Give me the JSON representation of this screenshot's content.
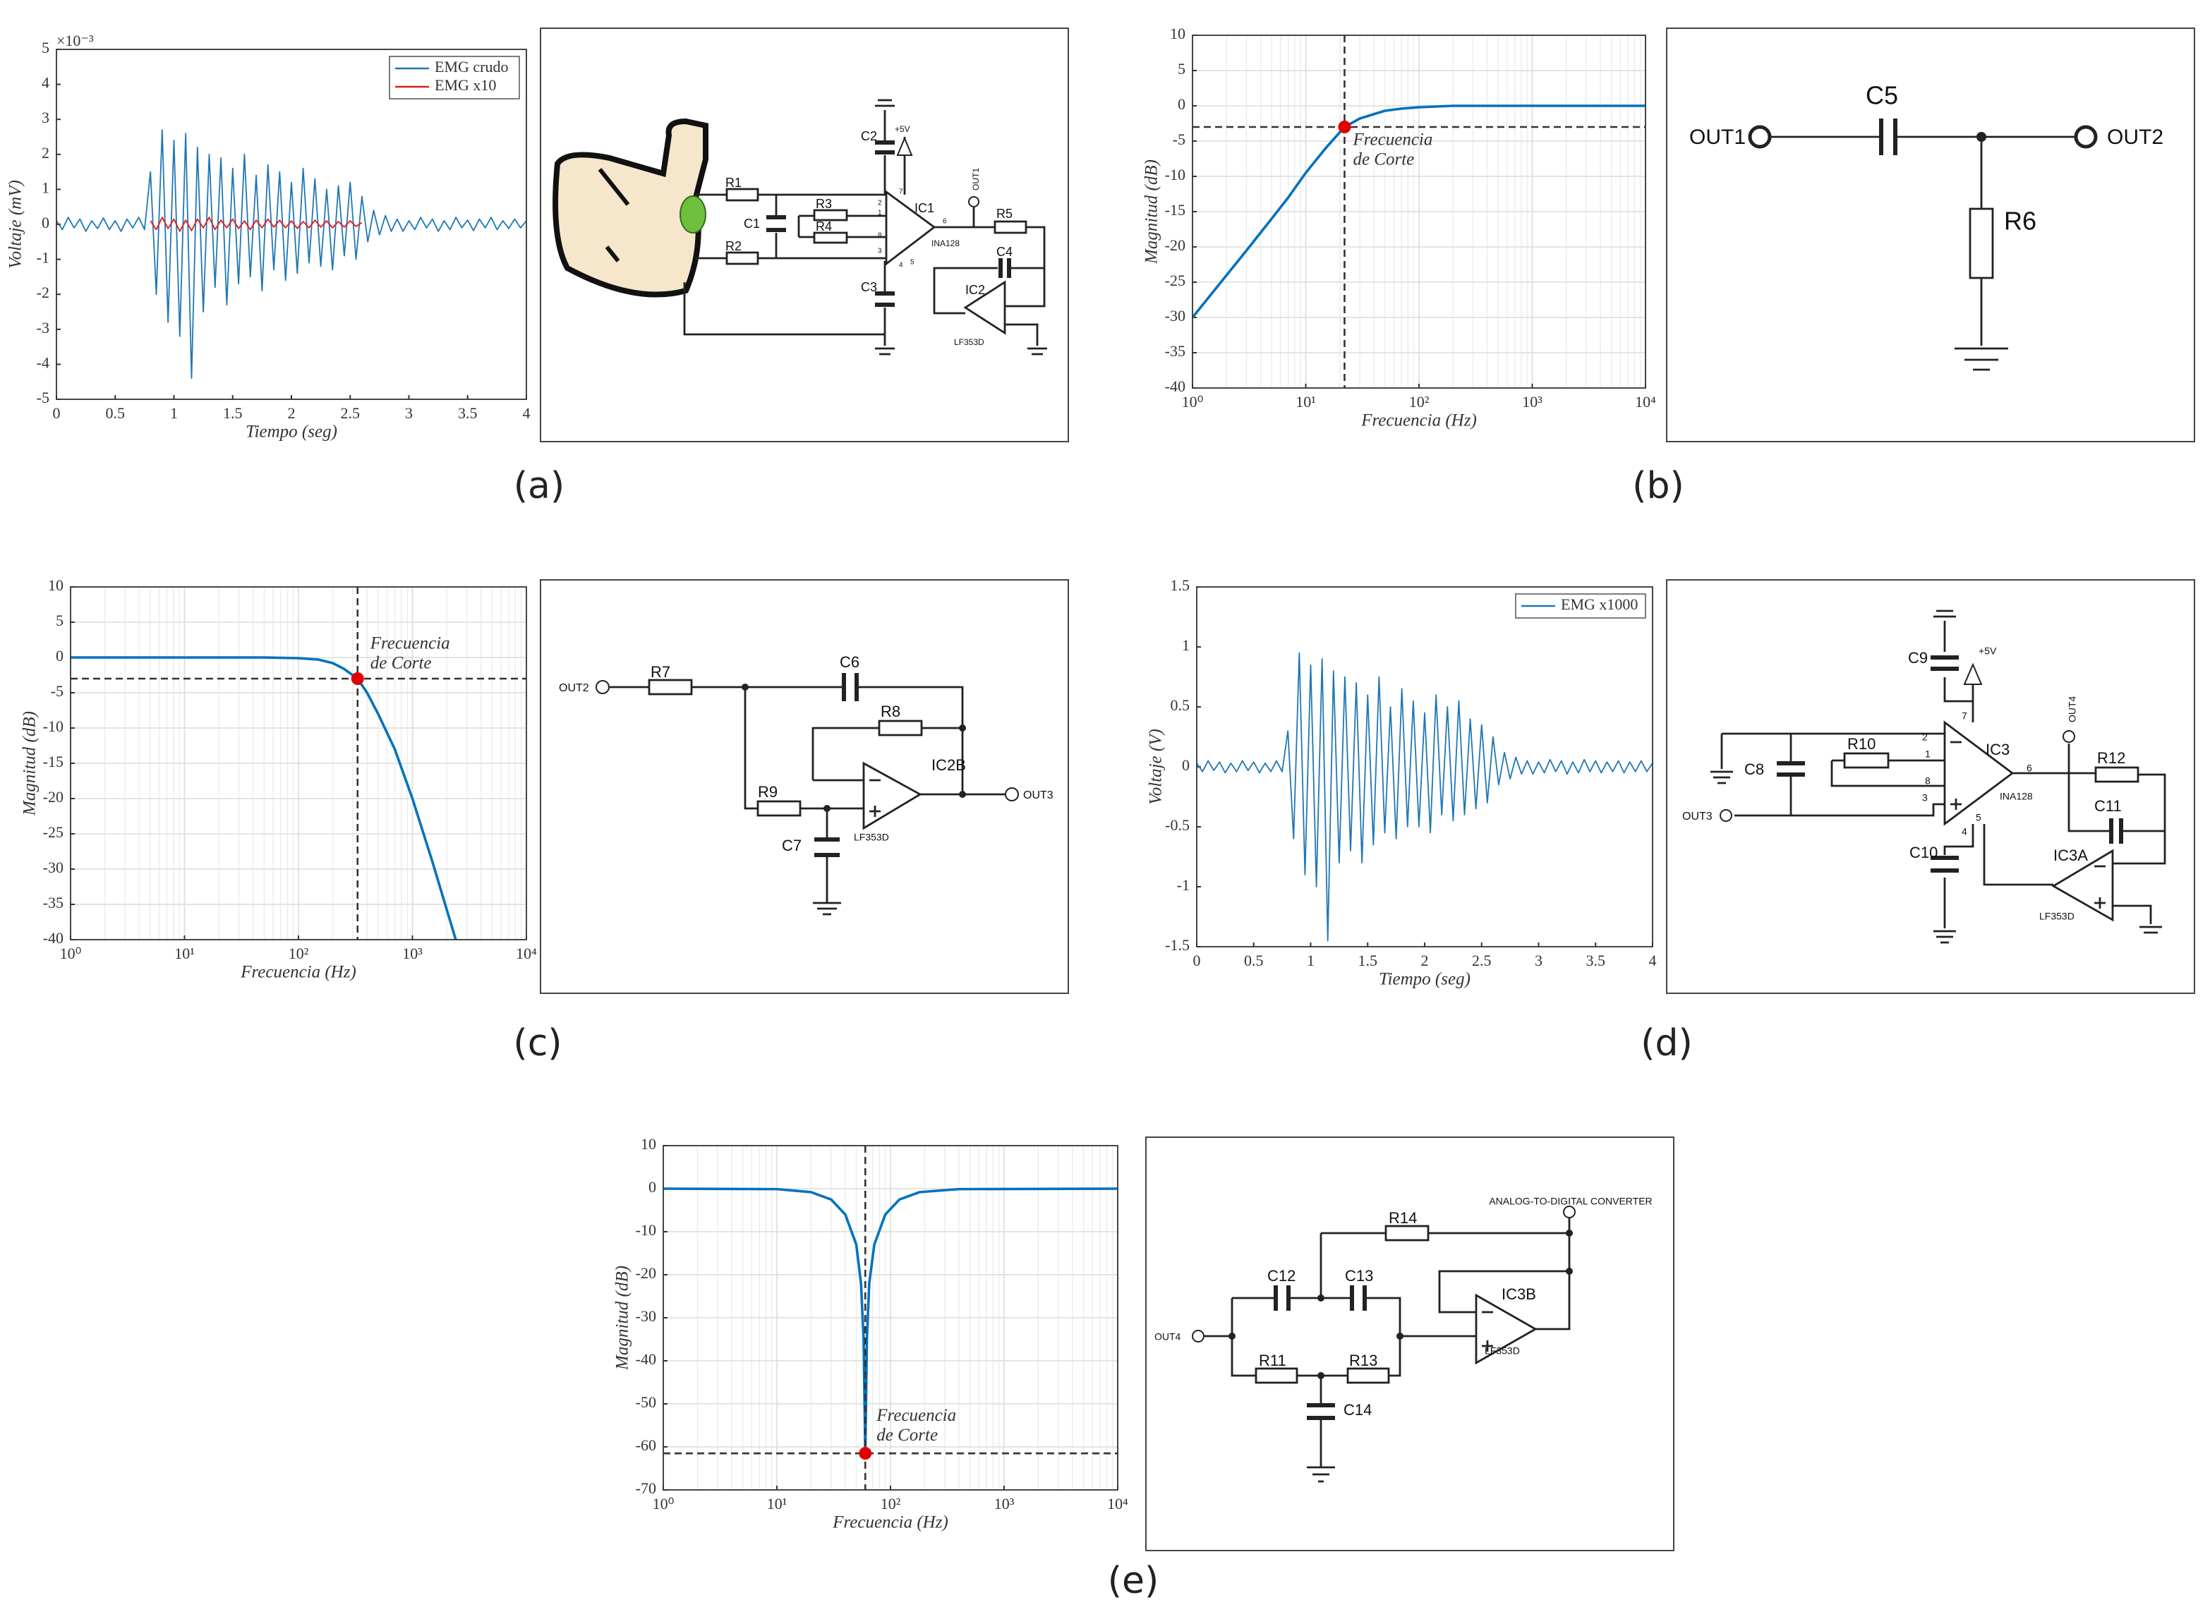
{
  "chart_data": [
    {
      "type": "line",
      "xlabel": "Tiempo (seg)",
      "ylabel": "Voltaje (mV)",
      "y_exponent_label": "×10⁻³",
      "xlim": [
        0,
        4
      ],
      "ylim": [
        -5,
        5
      ],
      "xticks": [
        0,
        0.5,
        1,
        1.5,
        2,
        2.5,
        3,
        3.5,
        4
      ],
      "yticks": [
        -5,
        -4,
        -3,
        -2,
        -1,
        0,
        1,
        2,
        3,
        4,
        5
      ],
      "grid": false,
      "legend": "upper right",
      "x": [
        0,
        0.05,
        0.1,
        0.15,
        0.2,
        0.25,
        0.3,
        0.35,
        0.4,
        0.45,
        0.5,
        0.55,
        0.6,
        0.65,
        0.7,
        0.75,
        0.8,
        0.85,
        0.9,
        0.95,
        1,
        1.05,
        1.1,
        1.15,
        1.2,
        1.25,
        1.3,
        1.35,
        1.4,
        1.45,
        1.5,
        1.55,
        1.6,
        1.65,
        1.7,
        1.75,
        1.8,
        1.85,
        1.9,
        1.95,
        2,
        2.05,
        2.1,
        2.15,
        2.2,
        2.25,
        2.3,
        2.35,
        2.4,
        2.45,
        2.5,
        2.55,
        2.6,
        2.65,
        2.7,
        2.75,
        2.8,
        2.85,
        2.9,
        2.95,
        3,
        3.05,
        3.1,
        3.15,
        3.2,
        3.25,
        3.3,
        3.35,
        3.4,
        3.45,
        3.5,
        3.55,
        3.6,
        3.65,
        3.7,
        3.75,
        3.8,
        3.85,
        3.9,
        3.95,
        4
      ],
      "series": [
        {
          "name": "EMG crudo",
          "color": "#1f77b4",
          "values": [
            0.1,
            -0.15,
            0.2,
            -0.1,
            0.15,
            -0.2,
            0.1,
            -0.12,
            0.18,
            -0.15,
            0.1,
            -0.2,
            0.15,
            -0.1,
            0.2,
            -0.15,
            1.5,
            -2.0,
            2.7,
            -2.8,
            2.4,
            -3.2,
            2.6,
            -4.4,
            2.2,
            -2.5,
            2.0,
            -1.8,
            1.9,
            -2.3,
            1.6,
            -1.7,
            2.0,
            -1.5,
            1.4,
            -1.9,
            1.7,
            -1.3,
            1.5,
            -1.6,
            1.2,
            -1.4,
            1.6,
            -1.1,
            1.3,
            -1.2,
            1.0,
            -1.3,
            1.1,
            -0.9,
            1.2,
            -1.0,
            0.8,
            -0.5,
            0.4,
            -0.3,
            0.25,
            -0.2,
            0.15,
            -0.2,
            0.1,
            -0.15,
            0.2,
            -0.1,
            0.15,
            -0.2,
            0.1,
            -0.15,
            0.2,
            -0.1,
            0.12,
            -0.18,
            0.15,
            -0.1,
            0.2,
            -0.15,
            0.1,
            -0.12,
            0.15,
            -0.1,
            0.1
          ]
        },
        {
          "name": "EMG x10",
          "color": "#e41a1c",
          "values": [
            null,
            null,
            null,
            null,
            null,
            null,
            null,
            null,
            null,
            null,
            null,
            null,
            null,
            null,
            null,
            null,
            0.1,
            -0.15,
            0.2,
            -0.12,
            0.15,
            -0.2,
            0.12,
            -0.18,
            0.15,
            -0.1,
            0.2,
            -0.15,
            0.12,
            -0.1,
            0.15,
            -0.12,
            0.1,
            -0.15,
            0.12,
            -0.1,
            0.15,
            -0.08,
            0.12,
            -0.1,
            0.1,
            -0.12,
            0.08,
            -0.1,
            0.12,
            -0.08,
            0.1,
            -0.1,
            0.08,
            -0.08,
            0.1,
            -0.06,
            0.05,
            null,
            null,
            null,
            null,
            null,
            null,
            null,
            null,
            null,
            null,
            null,
            null,
            null,
            null,
            null,
            null,
            null,
            null,
            null,
            null,
            null,
            null,
            null,
            null,
            null,
            null,
            null,
            null
          ]
        }
      ]
    },
    {
      "type": "line",
      "xscale": "log",
      "xlabel": "Frecuencia (Hz)",
      "ylabel": "Magnitud (dB)",
      "xlim": [
        1,
        10000
      ],
      "ylim": [
        -40,
        10
      ],
      "xticks": [
        {
          "value": 1,
          "label": "10⁰"
        },
        {
          "value": 10,
          "label": "10¹"
        },
        {
          "value": 100,
          "label": "10²"
        },
        {
          "value": 1000,
          "label": "10³"
        },
        {
          "value": 10000,
          "label": "10⁴"
        }
      ],
      "yticks": [
        -40,
        -35,
        -30,
        -25,
        -20,
        -15,
        -10,
        -5,
        0,
        5,
        10
      ],
      "grid": true,
      "minor_grid": true,
      "x": [
        1,
        2,
        3,
        5,
        7,
        10,
        15,
        22,
        30,
        50,
        70,
        100,
        200,
        500,
        1000,
        10000
      ],
      "series": [
        {
          "color": "#0072bd",
          "values": [
            -30,
            -24,
            -20.5,
            -16,
            -13,
            -9.5,
            -6,
            -3,
            -1.8,
            -0.7,
            -0.4,
            -0.2,
            0,
            0,
            0,
            0
          ]
        }
      ],
      "marker": {
        "x": 22,
        "y": -3,
        "color": "#e00000"
      },
      "annotation": [
        "Frecuencia",
        "de Corte"
      ]
    },
    {
      "type": "line",
      "xscale": "log",
      "xlabel": "Frecuencia (Hz)",
      "ylabel": "Magnitud (dB)",
      "xlim": [
        1,
        10000
      ],
      "ylim": [
        -40,
        10
      ],
      "xticks": [
        {
          "value": 1,
          "label": "10⁰"
        },
        {
          "value": 10,
          "label": "10¹"
        },
        {
          "value": 100,
          "label": "10²"
        },
        {
          "value": 1000,
          "label": "10³"
        },
        {
          "value": 10000,
          "label": "10⁴"
        }
      ],
      "yticks": [
        -40,
        -35,
        -30,
        -25,
        -20,
        -15,
        -10,
        -5,
        0,
        5,
        10
      ],
      "grid": true,
      "minor_grid": true,
      "x": [
        1,
        10,
        50,
        100,
        150,
        200,
        250,
        330,
        400,
        500,
        700,
        1000,
        1500,
        2400
      ],
      "series": [
        {
          "color": "#0072bd",
          "values": [
            0,
            0,
            0,
            -0.1,
            -0.3,
            -0.8,
            -1.6,
            -3,
            -5,
            -8,
            -13,
            -20,
            -29,
            -40
          ]
        }
      ],
      "marker": {
        "x": 330,
        "y": -3,
        "color": "#e00000"
      },
      "annotation": [
        "Frecuencia",
        "de Corte"
      ]
    },
    {
      "type": "line",
      "xlabel": "Tiempo (seg)",
      "ylabel": "Voltaje (V)",
      "xlim": [
        0,
        4
      ],
      "ylim": [
        -1.5,
        1.5
      ],
      "xticks": [
        0,
        0.5,
        1,
        1.5,
        2,
        2.5,
        3,
        3.5,
        4
      ],
      "yticks": [
        -1.5,
        -1,
        -0.5,
        0,
        0.5,
        1,
        1.5
      ],
      "grid": false,
      "legend": "upper right",
      "x": [
        0,
        0.05,
        0.1,
        0.15,
        0.2,
        0.25,
        0.3,
        0.35,
        0.4,
        0.45,
        0.5,
        0.55,
        0.6,
        0.65,
        0.7,
        0.75,
        0.8,
        0.85,
        0.9,
        0.95,
        1,
        1.05,
        1.1,
        1.15,
        1.2,
        1.25,
        1.3,
        1.35,
        1.4,
        1.45,
        1.5,
        1.55,
        1.6,
        1.65,
        1.7,
        1.75,
        1.8,
        1.85,
        1.9,
        1.95,
        2,
        2.05,
        2.1,
        2.15,
        2.2,
        2.25,
        2.3,
        2.35,
        2.4,
        2.45,
        2.5,
        2.55,
        2.6,
        2.65,
        2.7,
        2.75,
        2.8,
        2.85,
        2.9,
        2.95,
        3,
        3.05,
        3.1,
        3.15,
        3.2,
        3.25,
        3.3,
        3.35,
        3.4,
        3.45,
        3.5,
        3.55,
        3.6,
        3.65,
        3.7,
        3.75,
        3.8,
        3.85,
        3.9,
        3.95,
        4
      ],
      "series": [
        {
          "name": "EMG x1000",
          "color": "#1f77b4",
          "values": [
            0.03,
            -0.04,
            0.05,
            -0.03,
            0.04,
            -0.05,
            0.03,
            -0.04,
            0.05,
            -0.03,
            0.04,
            -0.05,
            0.03,
            -0.04,
            0.05,
            -0.04,
            0.3,
            -0.6,
            0.95,
            -0.9,
            0.85,
            -1.0,
            0.9,
            -1.45,
            0.8,
            -0.8,
            0.75,
            -0.7,
            0.7,
            -0.8,
            0.6,
            -0.65,
            0.75,
            -0.55,
            0.5,
            -0.6,
            0.65,
            -0.5,
            0.55,
            -0.5,
            0.45,
            -0.55,
            0.6,
            -0.4,
            0.5,
            -0.45,
            0.55,
            -0.4,
            0.4,
            -0.35,
            0.35,
            -0.3,
            0.25,
            -0.15,
            0.12,
            -0.1,
            0.08,
            -0.06,
            0.05,
            -0.06,
            0.04,
            -0.05,
            0.06,
            -0.04,
            0.05,
            -0.06,
            0.04,
            -0.05,
            0.06,
            -0.04,
            0.05,
            -0.05,
            0.04,
            -0.04,
            0.05,
            -0.05,
            0.04,
            -0.04,
            0.05,
            -0.04,
            0.03
          ]
        }
      ]
    },
    {
      "type": "line",
      "xscale": "log",
      "xlabel": "Frecuencia (Hz)",
      "ylabel": "Magnitud (dB)",
      "xlim": [
        1,
        10000
      ],
      "ylim": [
        -70,
        10
      ],
      "xticks": [
        {
          "value": 1,
          "label": "10⁰"
        },
        {
          "value": 10,
          "label": "10¹"
        },
        {
          "value": 100,
          "label": "10²"
        },
        {
          "value": 1000,
          "label": "10³"
        },
        {
          "value": 10000,
          "label": "10⁴"
        }
      ],
      "yticks": [
        -70,
        -60,
        -50,
        -40,
        -30,
        -20,
        -10,
        0,
        10
      ],
      "grid": true,
      "minor_grid": true,
      "x": [
        1,
        10,
        20,
        30,
        40,
        50,
        55,
        58,
        60,
        62,
        65,
        72,
        90,
        120,
        180,
        400,
        10000
      ],
      "series": [
        {
          "color": "#0072bd",
          "values": [
            0,
            -0.1,
            -0.8,
            -2.5,
            -6,
            -13,
            -22,
            -35,
            -61.5,
            -35,
            -22,
            -13,
            -6,
            -2.5,
            -0.8,
            -0.1,
            0
          ]
        }
      ],
      "marker": {
        "x": 60,
        "y": -61.5,
        "color": "#e00000"
      },
      "annotation": [
        "Frecuencia",
        "de Corte"
      ]
    }
  ],
  "circuits": [
    {
      "labels": [
        "R1",
        "C1",
        "R3",
        "R4",
        "R2",
        "C2",
        "+5V",
        "IC1",
        "OUT1",
        "R5",
        "INA128",
        "C4",
        "C3",
        "IC2",
        "LF353D"
      ],
      "pins": [
        "2",
        "1",
        "8",
        "3",
        "6",
        "7",
        "4",
        "5"
      ]
    },
    {
      "labels": [
        "OUT1",
        "C5",
        "OUT2",
        "R6"
      ]
    },
    {
      "labels": [
        "OUT2",
        "R7",
        "C6",
        "R8",
        "IC2B",
        "R9",
        "C7",
        "LF353D",
        "OUT3"
      ]
    },
    {
      "labels": [
        "C9",
        "+5V",
        "OUT4",
        "IC3",
        "R10",
        "C8",
        "R12",
        "INA128",
        "OUT3",
        "C11",
        "C10",
        "IC3A",
        "LF353D"
      ],
      "pins": [
        "7",
        "2",
        "1",
        "8",
        "3",
        "6",
        "4",
        "5"
      ]
    },
    {
      "labels": [
        "ANALOG-TO-DIGITAL CONVERTER",
        "R14",
        "C12",
        "C13",
        "IC3B",
        "OUT4",
        "R11",
        "R13",
        "C14",
        "LF353D"
      ]
    }
  ],
  "panel_labels": [
    "(a)",
    "(b)",
    "(c)",
    "(d)",
    "(e)"
  ]
}
